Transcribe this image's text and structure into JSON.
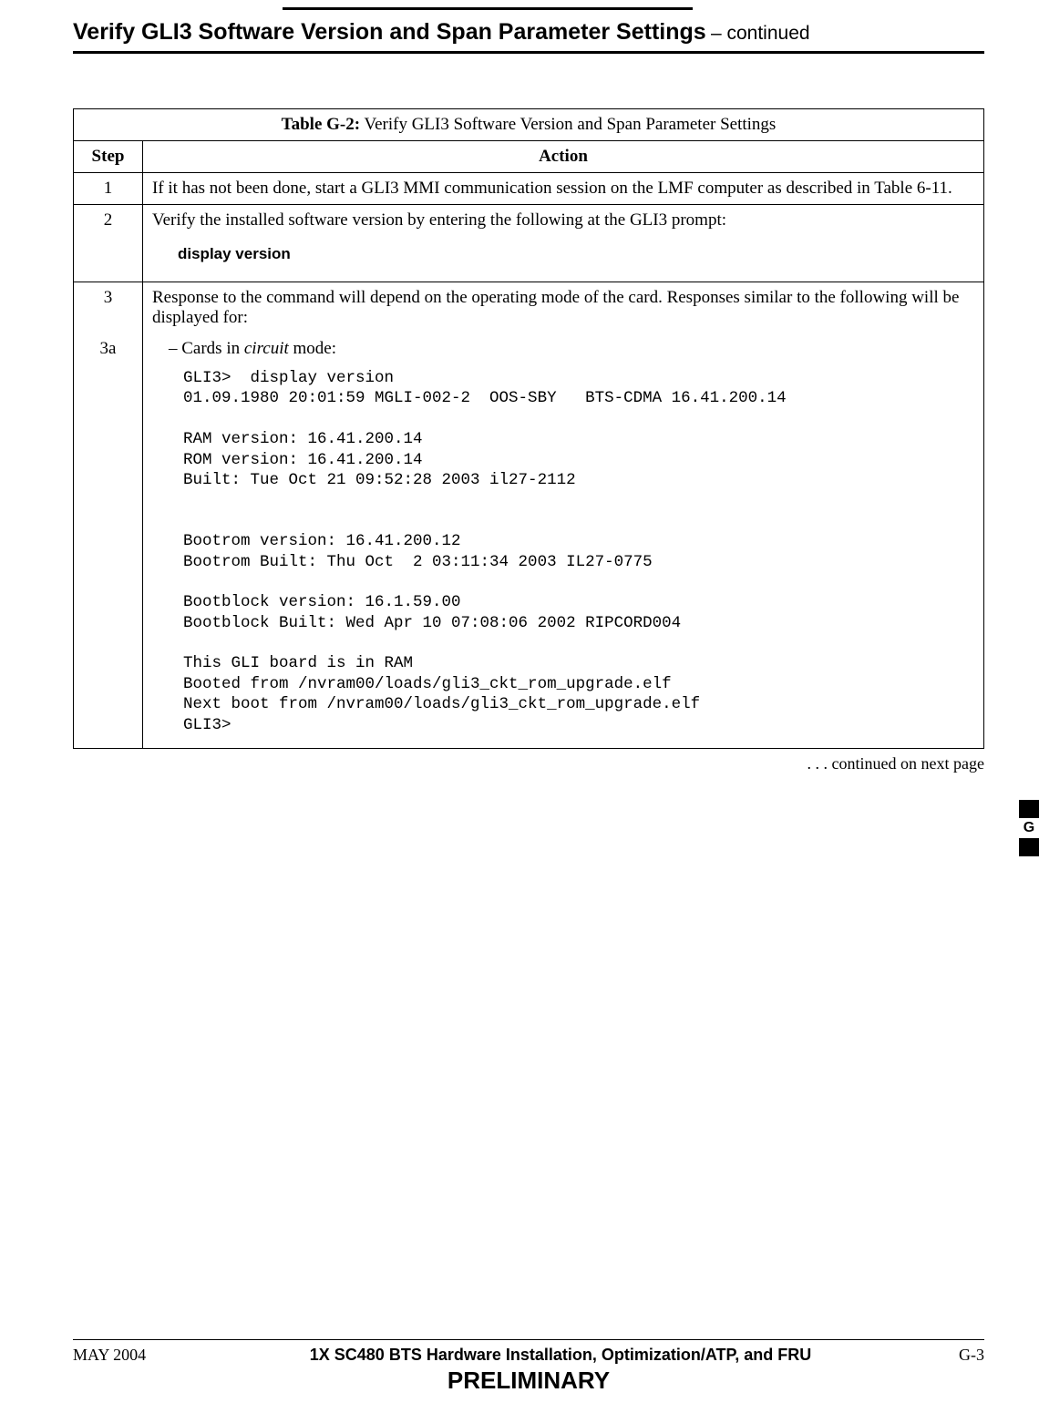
{
  "header": {
    "title_main": "Verify GLI3 Software Version and Span Parameter Settings",
    "title_suffix": "  – continued"
  },
  "table": {
    "caption_label": "Table G-2:",
    "caption_text": " Verify GLI3 Software Version and Span Parameter Settings",
    "col_step": "Step",
    "col_action": "Action",
    "rows": {
      "r1": {
        "step": "1",
        "action": "If it has not been done, start a GLI3 MMI communication session on the LMF computer as described in Table 6-11."
      },
      "r2": {
        "step": "2",
        "action_intro": "Verify the installed software version by entering the following at the GLI3 prompt:",
        "command": "display version"
      },
      "r3": {
        "step": "3",
        "action": "Response to the command will depend on the operating mode of the card. Responses similar to the following will be displayed for:"
      },
      "r3a": {
        "step": "3a",
        "dash": "–  Cards in ",
        "mode_word": "circuit",
        "mode_tail": " mode:",
        "terminal": "GLI3>  display version\n01.09.1980 20:01:59 MGLI-002-2  OOS-SBY   BTS-CDMA 16.41.200.14\n\nRAM version: 16.41.200.14\nROM version: 16.41.200.14\nBuilt: Tue Oct 21 09:52:28 2003 il27-2112\n\n\nBootrom version: 16.41.200.12\nBootrom Built: Thu Oct  2 03:11:34 2003 IL27-0775\n\nBootblock version: 16.1.59.00\nBootblock Built: Wed Apr 10 07:08:06 2002 RIPCORD004\n\nThis GLI board is in RAM\nBooted from /nvram00/loads/gli3_ckt_rom_upgrade.elf\nNext boot from /nvram00/loads/gli3_ckt_rom_upgrade.elf\nGLI3>"
      }
    },
    "continued": ". . . continued on next page"
  },
  "side_tab": {
    "letter": "G"
  },
  "footer": {
    "left": "MAY 2004",
    "center": "1X SC480 BTS Hardware Installation, Optimization/ATP, and FRU",
    "right": "G-3",
    "preliminary": "PRELIMINARY"
  }
}
